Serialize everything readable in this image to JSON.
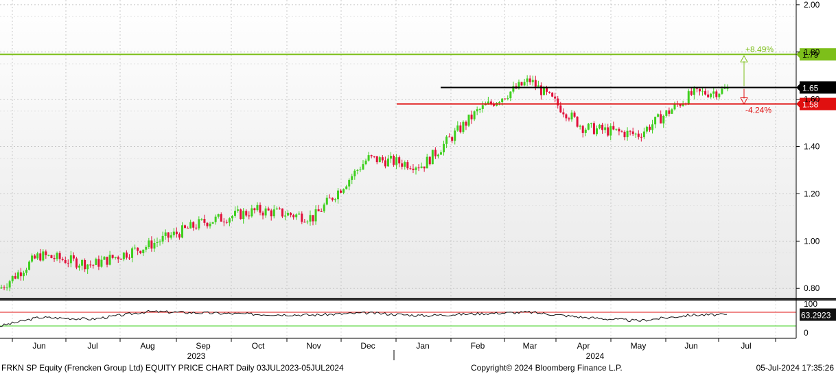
{
  "chart_data": {
    "type": "candlestick",
    "title": "FRKN SP Equity (Frencken Group Ltd) EQUITY PRICE CHART  Daily 03JUL2023-05JUL2024",
    "ylim": [
      0.76,
      2.02
    ],
    "yticks": [
      "2.00",
      "1.80",
      "1.60",
      "1.40",
      "1.20",
      "1.00",
      "0.80"
    ],
    "x_months": [
      "Jun",
      "Jul",
      "Aug",
      "Sep",
      "Oct",
      "Nov",
      "Dec",
      "Jan",
      "Feb",
      "Mar",
      "Apr",
      "May",
      "Jun",
      "Jul"
    ],
    "x_years": [
      "2023",
      "2024"
    ],
    "price_monthly": [
      {
        "month": "Jun 2023",
        "close": 0.94
      },
      {
        "month": "Jul 2023",
        "close": 0.9
      },
      {
        "month": "Aug 2023",
        "close": 0.98
      },
      {
        "month": "Sep 2023",
        "close": 1.08
      },
      {
        "month": "Oct 2023",
        "close": 1.13
      },
      {
        "month": "Nov 2023",
        "close": 1.1
      },
      {
        "month": "Dec 2023",
        "close": 1.35
      },
      {
        "month": "Jan 2024",
        "close": 1.32
      },
      {
        "month": "Feb 2024",
        "close": 1.55
      },
      {
        "month": "Mar 2024",
        "close": 1.68
      },
      {
        "month": "Apr 2024",
        "close": 1.48
      },
      {
        "month": "May 2024",
        "close": 1.45
      },
      {
        "month": "Jun 2024",
        "close": 1.62
      },
      {
        "month": "Jul 2024",
        "close": 1.65
      }
    ],
    "levels": [
      {
        "value": 1.79,
        "label": "1.79",
        "color": "#7dbf1a"
      },
      {
        "value": 1.65,
        "label": "1.65",
        "color": "#000000"
      },
      {
        "value": 1.58,
        "label": "1.58",
        "color": "#e01010"
      }
    ],
    "annotations": {
      "up": "+8.49%",
      "down": "-4.24%"
    },
    "rsi": {
      "ylim": [
        0,
        100
      ],
      "yticks": [
        "100",
        "0"
      ],
      "last_label": "63.2923",
      "upper_line": 70,
      "lower_line": 30,
      "series_monthly": [
        {
          "month": "Jun 2023",
          "value": 55
        },
        {
          "month": "Jul 2023",
          "value": 50
        },
        {
          "month": "Aug 2023",
          "value": 72
        },
        {
          "month": "Sep 2023",
          "value": 68
        },
        {
          "month": "Oct 2023",
          "value": 64
        },
        {
          "month": "Nov 2023",
          "value": 62
        },
        {
          "month": "Dec 2023",
          "value": 68
        },
        {
          "month": "Jan 2024",
          "value": 60
        },
        {
          "month": "Feb 2024",
          "value": 66
        },
        {
          "month": "Mar 2024",
          "value": 70
        },
        {
          "month": "Apr 2024",
          "value": 55
        },
        {
          "month": "May 2024",
          "value": 45
        },
        {
          "month": "Jun 2024",
          "value": 62
        },
        {
          "month": "Jul 2024",
          "value": 63
        }
      ]
    },
    "colors": {
      "up": "#3ecf1e",
      "down": "#e0103a",
      "grid": "#c8c8c8",
      "bg_top": "#ffffff",
      "bg_bottom": "#ececec"
    }
  },
  "footer": {
    "left": "FRKN SP Equity (Frencken Group Ltd) EQUITY PRICE CHART  Daily 03JUL2023-05JUL2024",
    "center": "Copyright© 2024 Bloomberg Finance L.P.",
    "right": "05-Jul-2024 17:35:26"
  }
}
